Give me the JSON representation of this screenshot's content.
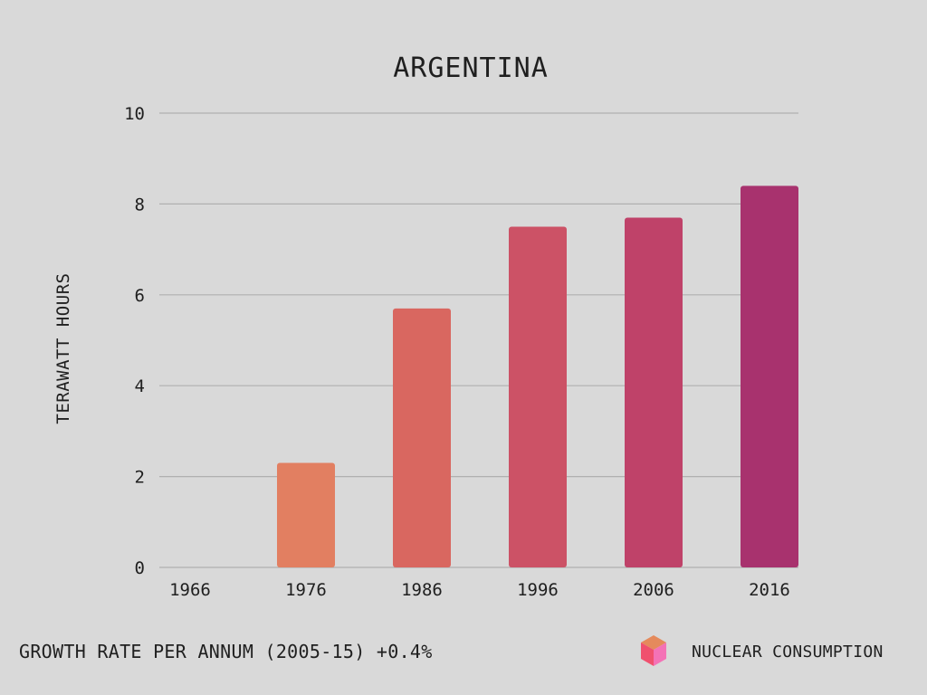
{
  "chart_data": {
    "type": "bar",
    "title": "ARGENTINA",
    "xlabel": "",
    "ylabel": "TERAWATT HOURS",
    "categories": [
      "1966",
      "1976",
      "1986",
      "1996",
      "2006",
      "2016"
    ],
    "values": [
      0,
      2.3,
      5.7,
      7.5,
      7.7,
      8.4
    ],
    "ylim": [
      0,
      10
    ],
    "yticks": [
      0,
      2,
      4,
      6,
      8,
      10
    ],
    "grid": true,
    "bar_colors": [
      "#e58a5c",
      "#e27f61",
      "#d96760",
      "#cc5266",
      "#bf4269",
      "#a8326e"
    ],
    "series": [
      {
        "name": "NUCLEAR CONSUMPTION",
        "values": [
          0,
          2.3,
          5.7,
          7.5,
          7.7,
          8.4
        ]
      }
    ],
    "legend_placement": "bottom-right"
  },
  "footer": {
    "note": "GROWTH RATE PER ANNUM (2005-15) +0.4%",
    "legend_label": "NUCLEAR CONSUMPTION",
    "legend_icon": "cube-icon"
  },
  "colors": {
    "background": "#d9d9d9",
    "gridline": "#b0b0b0",
    "text": "#1f1f1f"
  }
}
